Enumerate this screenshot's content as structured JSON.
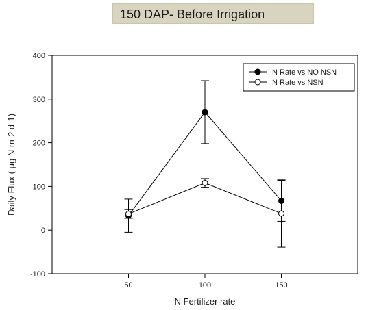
{
  "chart_data": {
    "type": "line",
    "title": "150 DAP- Before Irrigation",
    "xlabel": "N Fertilizer rate",
    "ylabel": "Daily Flux ( µg N m-2 d-1)",
    "x": [
      50,
      100,
      150
    ],
    "xlim": [
      0,
      200
    ],
    "ylim": [
      -100,
      400
    ],
    "xticks": [
      50,
      100,
      150
    ],
    "yticks": [
      -100,
      0,
      100,
      200,
      300,
      400
    ],
    "legend_position": "top-right",
    "grid": false,
    "series": [
      {
        "name": "N Rate vs NO NSN",
        "marker": "filled-circle",
        "color": "#000000",
        "values": [
          33,
          270,
          67
        ],
        "err": [
          38,
          72,
          47
        ]
      },
      {
        "name": "N Rate vs NSN",
        "marker": "open-circle",
        "color": "#000000",
        "values": [
          37,
          108,
          38
        ],
        "err": [
          10,
          10,
          77
        ]
      }
    ]
  }
}
